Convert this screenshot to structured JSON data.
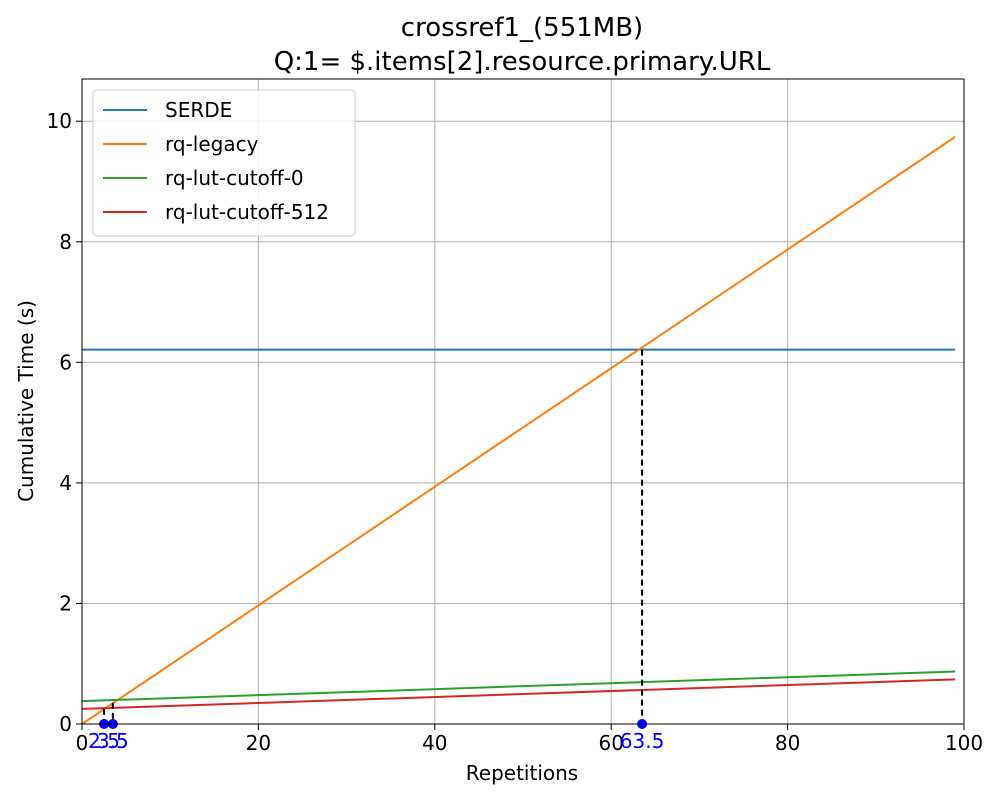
{
  "chart_data": {
    "type": "line",
    "title_lines": [
      "crossref1_(551MB)",
      "Q:1= $.items[2].resource.primary.URL"
    ],
    "xlabel": "Repetitions",
    "ylabel": "Cumulative Time (s)",
    "xlim": [
      0,
      100
    ],
    "ylim": [
      0,
      10.7
    ],
    "xticks": [
      0,
      20,
      40,
      60,
      80,
      100
    ],
    "yticks": [
      0,
      2,
      4,
      6,
      8,
      10
    ],
    "grid": true,
    "legend_position": "upper-left",
    "series": [
      {
        "name": "SERDE",
        "color": "#1f77b4",
        "x": [
          0,
          99
        ],
        "y": [
          6.21,
          6.21
        ]
      },
      {
        "name": "rq-legacy",
        "color": "#ff7f0e",
        "x": [
          0,
          99
        ],
        "y": [
          0.0,
          9.74
        ]
      },
      {
        "name": "rq-lut-cutoff-0",
        "color": "#2ca02c",
        "x": [
          0,
          99
        ],
        "y": [
          0.38,
          0.87
        ]
      },
      {
        "name": "rq-lut-cutoff-512",
        "color": "#d62728",
        "x": [
          0,
          99
        ],
        "y": [
          0.25,
          0.74
        ]
      }
    ],
    "crossovers": [
      {
        "x": 2.5,
        "label": "2.5",
        "y": 0.25
      },
      {
        "x": 3.5,
        "label": "3.5",
        "y": 0.35
      },
      {
        "x": 63.5,
        "label": "63.5",
        "y": 6.21
      }
    ],
    "crossover_color": "#0000ff"
  }
}
